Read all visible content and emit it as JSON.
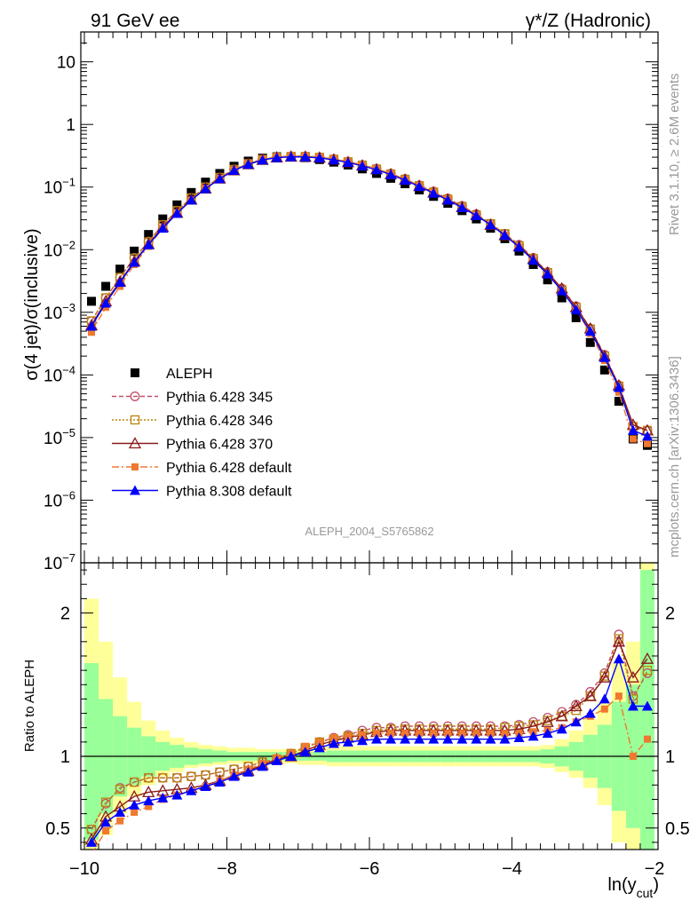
{
  "header": {
    "left_title": "91 GeV ee",
    "right_title": "γ*/Z (Hadronic)"
  },
  "side_labels": {
    "rivet": "Rivet 3.1.10, ≥ 2.6M events",
    "mcplots": "mcplots.cern.ch [arXiv:1306.3436]"
  },
  "analysis_label": "ALEPH_2004_S5765862",
  "chart_data": [
    {
      "type": "scatter",
      "ylabel": "σ(4 jet)/σ(inclusive)",
      "yscale": "log",
      "ylim": [
        1e-07,
        30
      ],
      "xlim": [
        -10.05,
        -1.95
      ],
      "ytick_labels": [
        "10^-7",
        "10^-6",
        "10^-5",
        "10^-4",
        "10^-3",
        "10^-2",
        "10^-1",
        "1",
        "10"
      ],
      "x": [
        -9.9,
        -9.7,
        -9.5,
        -9.3,
        -9.1,
        -8.9,
        -8.7,
        -8.5,
        -8.3,
        -8.1,
        -7.9,
        -7.7,
        -7.5,
        -7.3,
        -7.1,
        -6.9,
        -6.7,
        -6.5,
        -6.3,
        -6.1,
        -5.9,
        -5.7,
        -5.5,
        -5.3,
        -5.1,
        -4.9,
        -4.7,
        -4.5,
        -4.3,
        -4.1,
        -3.9,
        -3.7,
        -3.5,
        -3.3,
        -3.1,
        -2.9,
        -2.7,
        -2.5,
        -2.3,
        -2.1
      ],
      "series": [
        {
          "name": "ALEPH",
          "color": "#000000",
          "values": [
            0.0015,
            0.0026,
            0.0049,
            0.0095,
            0.0175,
            0.031,
            0.052,
            0.082,
            0.12,
            0.165,
            0.215,
            0.26,
            0.29,
            0.305,
            0.305,
            0.295,
            0.275,
            0.25,
            0.225,
            0.195,
            0.165,
            0.138,
            0.113,
            0.09,
            0.071,
            0.055,
            0.042,
            0.031,
            0.022,
            0.015,
            0.0095,
            0.0058,
            0.0033,
            0.0017,
            0.00082,
            0.00033,
            0.00012,
            3.8e-05,
            9.5e-06,
            7.5e-06
          ]
        },
        {
          "name": "Pythia 6.428 345",
          "color": "#c0506a",
          "values": [
            0.00072,
            0.0017,
            0.0036,
            0.0074,
            0.0135,
            0.025,
            0.042,
            0.067,
            0.1,
            0.143,
            0.192,
            0.238,
            0.278,
            0.3,
            0.31,
            0.31,
            0.3,
            0.28,
            0.255,
            0.226,
            0.196,
            0.164,
            0.135,
            0.107,
            0.085,
            0.066,
            0.05,
            0.037,
            0.026,
            0.018,
            0.012,
            0.0074,
            0.0044,
            0.0024,
            0.00125,
            0.00055,
            0.00021,
            6.8e-05,
            1.5e-05,
            1.3e-05
          ]
        },
        {
          "name": "Pythia 6.428 346",
          "color": "#b8860b",
          "values": [
            0.00073,
            0.0017,
            0.0036,
            0.0073,
            0.0133,
            0.025,
            0.042,
            0.067,
            0.1,
            0.142,
            0.191,
            0.236,
            0.276,
            0.298,
            0.308,
            0.308,
            0.298,
            0.278,
            0.253,
            0.224,
            0.194,
            0.162,
            0.133,
            0.105,
            0.083,
            0.064,
            0.049,
            0.036,
            0.026,
            0.018,
            0.0115,
            0.0072,
            0.0043,
            0.0023,
            0.0012,
            0.00054,
            0.0002,
            6.6e-05,
            1.5e-05,
            1.3e-05
          ]
        },
        {
          "name": "Pythia 6.428 370",
          "color": "#8b1a1a",
          "values": [
            0.00062,
            0.0015,
            0.0031,
            0.0065,
            0.0123,
            0.023,
            0.039,
            0.063,
            0.095,
            0.137,
            0.185,
            0.232,
            0.272,
            0.297,
            0.306,
            0.305,
            0.295,
            0.275,
            0.25,
            0.221,
            0.192,
            0.16,
            0.131,
            0.104,
            0.082,
            0.063,
            0.048,
            0.036,
            0.025,
            0.017,
            0.0113,
            0.0071,
            0.0043,
            0.0024,
            0.0012,
            0.00055,
            0.0002,
            6.8e-05,
            1.6e-05,
            1.3e-05
          ]
        },
        {
          "name": "Pythia 6.428 default",
          "color": "#f07830",
          "values": [
            0.00048,
            0.0012,
            0.0026,
            0.0058,
            0.0113,
            0.022,
            0.038,
            0.062,
            0.095,
            0.138,
            0.188,
            0.237,
            0.28,
            0.305,
            0.315,
            0.314,
            0.302,
            0.28,
            0.255,
            0.225,
            0.195,
            0.163,
            0.133,
            0.106,
            0.083,
            0.064,
            0.048,
            0.036,
            0.025,
            0.017,
            0.011,
            0.0068,
            0.004,
            0.0022,
            0.0011,
            0.00046,
            0.00017,
            5.3e-05,
            9.5e-06,
            8e-06
          ]
        },
        {
          "name": "Pythia 8.308 default",
          "color": "#0000ff",
          "values": [
            0.0006,
            0.0014,
            0.003,
            0.0063,
            0.012,
            0.022,
            0.038,
            0.062,
            0.094,
            0.136,
            0.184,
            0.231,
            0.271,
            0.295,
            0.304,
            0.303,
            0.292,
            0.272,
            0.247,
            0.218,
            0.189,
            0.158,
            0.129,
            0.102,
            0.08,
            0.062,
            0.047,
            0.035,
            0.025,
            0.017,
            0.011,
            0.0068,
            0.0041,
            0.0022,
            0.0011,
            0.0005,
            0.00019,
            6.3e-05,
            1.3e-05,
            1.05e-05
          ]
        }
      ]
    },
    {
      "type": "scatter",
      "ylabel": "Ratio to ALEPH",
      "xlabel": "ln(y_cut)",
      "ylim": [
        0.35,
        2.35
      ],
      "xlim": [
        -10.05,
        -1.95
      ],
      "xtick_labels": [
        "−10",
        "−8",
        "−6",
        "−4",
        "−2"
      ],
      "ytick_labels": [
        "0.5",
        "1",
        "2"
      ],
      "reference_line": 1,
      "x": [
        -9.9,
        -9.7,
        -9.5,
        -9.3,
        -9.1,
        -8.9,
        -8.7,
        -8.5,
        -8.3,
        -8.1,
        -7.9,
        -7.7,
        -7.5,
        -7.3,
        -7.1,
        -6.9,
        -6.7,
        -6.5,
        -6.3,
        -6.1,
        -5.9,
        -5.7,
        -5.5,
        -5.3,
        -5.1,
        -4.9,
        -4.7,
        -4.5,
        -4.3,
        -4.1,
        -3.9,
        -3.7,
        -3.5,
        -3.3,
        -3.1,
        -2.9,
        -2.7,
        -2.5,
        -2.3,
        -2.1
      ],
      "bands": {
        "green_low": [
          0.42,
          0.6,
          0.72,
          0.8,
          0.86,
          0.9,
          0.92,
          0.94,
          0.95,
          0.96,
          0.97,
          0.97,
          0.97,
          0.97,
          0.97,
          0.97,
          0.97,
          0.96,
          0.96,
          0.96,
          0.96,
          0.96,
          0.96,
          0.96,
          0.96,
          0.96,
          0.96,
          0.96,
          0.96,
          0.96,
          0.96,
          0.96,
          0.95,
          0.93,
          0.9,
          0.85,
          0.78,
          0.62,
          0.5,
          0.35
        ],
        "green_high": [
          1.65,
          1.4,
          1.28,
          1.2,
          1.14,
          1.1,
          1.08,
          1.06,
          1.05,
          1.04,
          1.03,
          1.03,
          1.03,
          1.03,
          1.03,
          1.03,
          1.03,
          1.04,
          1.04,
          1.04,
          1.04,
          1.04,
          1.04,
          1.04,
          1.04,
          1.04,
          1.04,
          1.04,
          1.04,
          1.04,
          1.04,
          1.04,
          1.05,
          1.07,
          1.1,
          1.15,
          1.22,
          1.38,
          1.5,
          2.3
        ],
        "yellow_low": [
          0.3,
          0.45,
          0.6,
          0.72,
          0.8,
          0.86,
          0.89,
          0.92,
          0.93,
          0.94,
          0.95,
          0.95,
          0.95,
          0.95,
          0.95,
          0.94,
          0.94,
          0.93,
          0.93,
          0.93,
          0.93,
          0.93,
          0.93,
          0.93,
          0.93,
          0.93,
          0.93,
          0.93,
          0.93,
          0.93,
          0.93,
          0.93,
          0.92,
          0.89,
          0.85,
          0.78,
          0.66,
          0.4,
          0.3,
          0.3
        ],
        "yellow_high": [
          2.1,
          1.8,
          1.55,
          1.38,
          1.25,
          1.18,
          1.13,
          1.1,
          1.08,
          1.07,
          1.06,
          1.06,
          1.05,
          1.05,
          1.05,
          1.05,
          1.06,
          1.07,
          1.07,
          1.07,
          1.07,
          1.07,
          1.07,
          1.07,
          1.07,
          1.07,
          1.07,
          1.07,
          1.07,
          1.07,
          1.07,
          1.07,
          1.08,
          1.12,
          1.18,
          1.26,
          1.38,
          1.65,
          1.8,
          2.4
        ]
      },
      "series": [
        {
          "name": "Pythia 6.428 345",
          "values": [
            0.49,
            0.67,
            0.78,
            0.82,
            0.85,
            0.85,
            0.85,
            0.86,
            0.87,
            0.89,
            0.91,
            0.93,
            0.96,
            0.98,
            1.02,
            1.06,
            1.1,
            1.13,
            1.15,
            1.18,
            1.2,
            1.2,
            1.21,
            1.21,
            1.21,
            1.21,
            1.21,
            1.21,
            1.21,
            1.21,
            1.22,
            1.24,
            1.27,
            1.31,
            1.36,
            1.45,
            1.58,
            1.85,
            1.42,
            1.58
          ]
        },
        {
          "name": "Pythia 6.428 346",
          "values": [
            0.49,
            0.68,
            0.77,
            0.82,
            0.85,
            0.85,
            0.85,
            0.86,
            0.87,
            0.89,
            0.91,
            0.93,
            0.96,
            0.98,
            1.02,
            1.06,
            1.1,
            1.12,
            1.14,
            1.16,
            1.18,
            1.19,
            1.19,
            1.19,
            1.19,
            1.19,
            1.19,
            1.19,
            1.19,
            1.2,
            1.21,
            1.22,
            1.25,
            1.28,
            1.32,
            1.42,
            1.56,
            1.82,
            1.4,
            1.6
          ]
        },
        {
          "name": "Pythia 6.428 370",
          "values": [
            0.42,
            0.58,
            0.65,
            0.72,
            0.75,
            0.76,
            0.77,
            0.78,
            0.8,
            0.83,
            0.87,
            0.9,
            0.94,
            0.98,
            1.0,
            1.04,
            1.08,
            1.11,
            1.13,
            1.15,
            1.17,
            1.18,
            1.18,
            1.18,
            1.18,
            1.18,
            1.18,
            1.18,
            1.18,
            1.18,
            1.19,
            1.21,
            1.24,
            1.28,
            1.35,
            1.42,
            1.55,
            1.8,
            1.55,
            1.68
          ]
        },
        {
          "name": "Pythia 6.428 default",
          "values": [
            0.32,
            0.48,
            0.55,
            0.61,
            0.65,
            0.7,
            0.73,
            0.76,
            0.79,
            0.83,
            0.87,
            0.91,
            0.95,
            0.99,
            1.02,
            1.07,
            1.1,
            1.13,
            1.14,
            1.15,
            1.16,
            1.16,
            1.16,
            1.16,
            1.16,
            1.16,
            1.16,
            1.16,
            1.16,
            1.16,
            1.16,
            1.17,
            1.18,
            1.2,
            1.24,
            1.28,
            1.33,
            1.42,
            1.0,
            1.12
          ]
        },
        {
          "name": "Pythia 8.308 default",
          "values": [
            0.4,
            0.54,
            0.61,
            0.66,
            0.69,
            0.71,
            0.73,
            0.76,
            0.79,
            0.82,
            0.86,
            0.89,
            0.93,
            0.97,
            1.0,
            1.03,
            1.06,
            1.09,
            1.1,
            1.11,
            1.12,
            1.12,
            1.12,
            1.12,
            1.12,
            1.12,
            1.12,
            1.12,
            1.12,
            1.12,
            1.13,
            1.14,
            1.16,
            1.19,
            1.24,
            1.3,
            1.4,
            1.68,
            1.35,
            1.35
          ]
        }
      ]
    }
  ]
}
